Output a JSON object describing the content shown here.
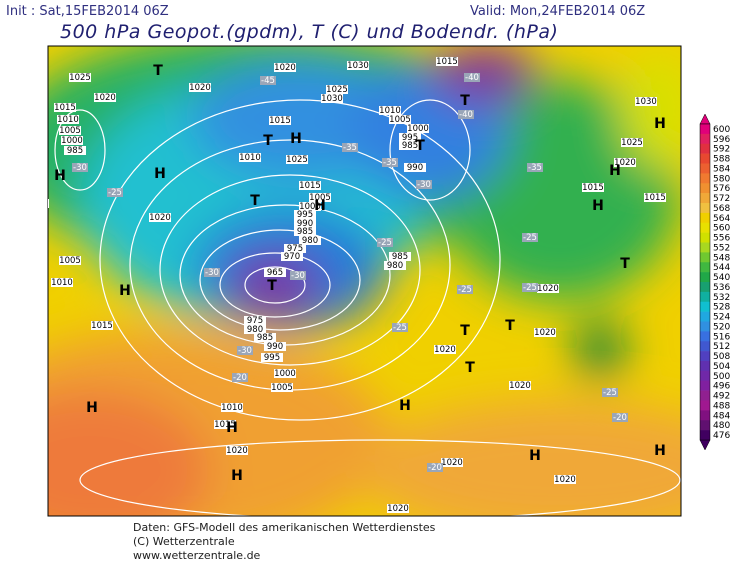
{
  "header": {
    "init": "Init : Sat,15FEB2014 06Z",
    "valid": "Valid: Mon,24FEB2014 06Z",
    "title": "500 hPa Geopot.(gpdm), T (C) und Bodendr. (hPa)"
  },
  "footer": [
    "Daten: GFS-Modell des amerikanischen Wetterdienstes",
    "(C) Wetterzentrale",
    "www.wetterzentrale.de"
  ],
  "colorbar": {
    "ticks": [
      600,
      596,
      592,
      588,
      584,
      580,
      576,
      572,
      568,
      564,
      560,
      556,
      552,
      548,
      544,
      540,
      536,
      532,
      528,
      524,
      520,
      516,
      512,
      508,
      504,
      500,
      496,
      492,
      488,
      484,
      480,
      476
    ],
    "colors": [
      "#e0007a",
      "#e02060",
      "#e03040",
      "#e84830",
      "#ec6030",
      "#f07a30",
      "#f09030",
      "#f0a838",
      "#f0c040",
      "#f0d000",
      "#e8e000",
      "#d0e000",
      "#a8d820",
      "#70c830",
      "#40b840",
      "#20a848",
      "#18a070",
      "#10b0a0",
      "#10c0d0",
      "#20a8e0",
      "#3090e0",
      "#3870e0",
      "#4058d0",
      "#5040c0",
      "#6030b0",
      "#7028a8",
      "#8020a0",
      "#902090",
      "#a01890",
      "#801080",
      "#601070",
      "#400060"
    ]
  },
  "isobar_labels": [
    "1025",
    "1020",
    "1015",
    "1010",
    "1005",
    "1000",
    "985",
    "985",
    "1020",
    "1005",
    "1010",
    "1015",
    "1020",
    "1020",
    "1015",
    "1010",
    "1025",
    "1015",
    "1005",
    "1000",
    "995",
    "990",
    "985",
    "980",
    "975",
    "970",
    "965",
    "975",
    "980",
    "985",
    "990",
    "995",
    "1000",
    "1005",
    "1010",
    "1015",
    "1020",
    "1030",
    "1025",
    "1030",
    "1010",
    "1005",
    "1000",
    "995",
    "985",
    "990",
    "985",
    "980",
    "1015",
    "1030",
    "1025",
    "1020",
    "1015",
    "1015",
    "1020",
    "1020",
    "1020",
    "1020",
    "1020",
    "1020",
    "1020"
  ],
  "temperature_labels": [
    "-45",
    "-40",
    "-40",
    "-35",
    "-35",
    "-30",
    "-30",
    "-35",
    "-30",
    "-30",
    "-30",
    "-25",
    "-25",
    "-25",
    "-25",
    "-25",
    "-25",
    "-20",
    "-20",
    "-20",
    "-25"
  ],
  "pressure_centers": [
    "T",
    "T",
    "H",
    "H",
    "H",
    "T",
    "H",
    "H",
    "T",
    "H",
    "H",
    "T",
    "T",
    "T",
    "T",
    "H",
    "H",
    "H",
    "H",
    "H",
    "H",
    "H",
    "T",
    "T"
  ]
}
